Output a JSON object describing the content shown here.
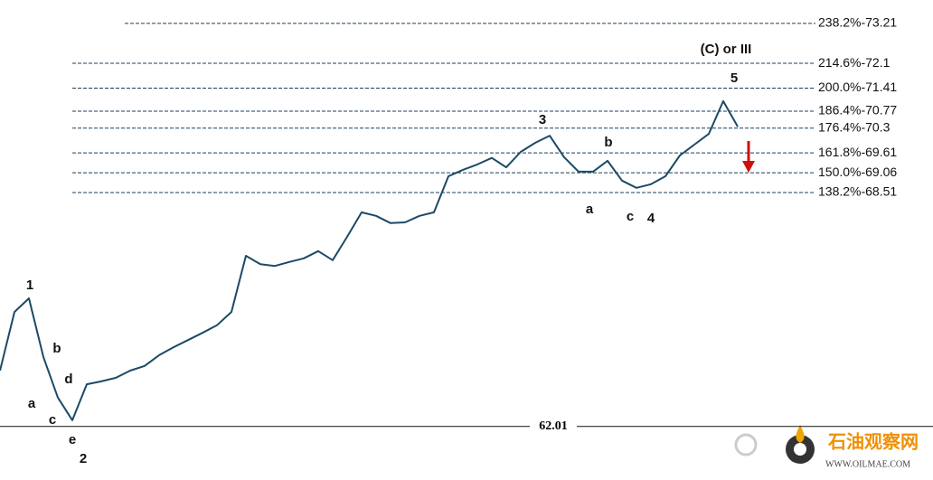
{
  "chart_data": {
    "type": "line",
    "color": "#1c4a66",
    "ylim": [
      60.52,
      73.86
    ],
    "values": [
      63.56,
      65.19,
      65.57,
      63.94,
      62.81,
      62.18,
      63.18,
      63.26,
      63.36,
      63.56,
      63.69,
      63.99,
      64.21,
      64.41,
      64.61,
      64.82,
      65.19,
      66.75,
      66.52,
      66.47,
      66.58,
      66.68,
      66.88,
      66.63,
      67.28,
      67.96,
      67.86,
      67.66,
      67.68,
      67.86,
      67.96,
      68.96,
      69.14,
      69.29,
      69.47,
      69.21,
      69.64,
      69.89,
      70.09,
      69.49,
      69.09,
      69.09,
      69.39,
      68.84,
      68.64,
      68.74,
      68.96,
      69.54,
      69.84,
      70.14,
      71.05,
      70.34
    ],
    "levels": [
      {
        "value": 73.21,
        "label": "238.2%-73.21"
      },
      {
        "value": 72.1,
        "label": "214.6%-72.1"
      },
      {
        "value": 71.41,
        "label": "200.0%-71.41"
      },
      {
        "value": 70.77,
        "label": "186.4%-70.77"
      },
      {
        "value": 70.3,
        "label": "176.4%-70.3"
      },
      {
        "value": 69.61,
        "label": "161.8%-69.61"
      },
      {
        "value": 69.06,
        "label": "150.0%-69.06"
      },
      {
        "value": 68.51,
        "label": "138.2%-68.51"
      }
    ],
    "baseline": 62.01,
    "annotations": [
      "1",
      "a",
      "b",
      "c",
      "d",
      "e",
      "2",
      "3",
      "a",
      "b",
      "c",
      "4",
      "5",
      "(C) or III"
    ],
    "watermark": {
      "name": "石油观察网",
      "url": "WWW.OILMAE.COM"
    }
  }
}
